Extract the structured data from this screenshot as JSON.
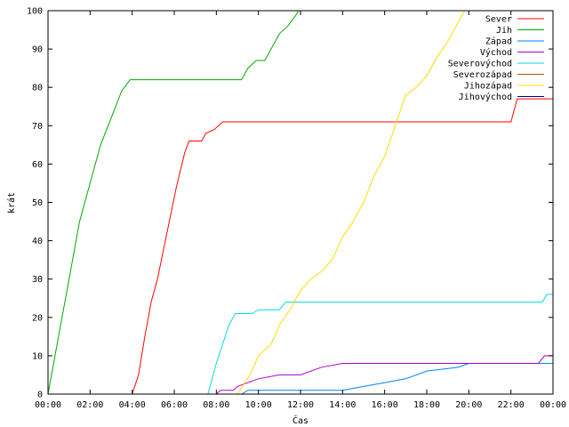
{
  "chart_data": {
    "type": "line",
    "title": "",
    "xlabel": "Čas",
    "ylabel": "krát",
    "xlim": [
      0,
      24
    ],
    "ylim": [
      0,
      100
    ],
    "x_ticks": [
      {
        "value": 0,
        "label": "00:00"
      },
      {
        "value": 2,
        "label": "02:00"
      },
      {
        "value": 4,
        "label": "04:00"
      },
      {
        "value": 6,
        "label": "06:00"
      },
      {
        "value": 8,
        "label": "08:00"
      },
      {
        "value": 10,
        "label": "10:00"
      },
      {
        "value": 12,
        "label": "12:00"
      },
      {
        "value": 14,
        "label": "14:00"
      },
      {
        "value": 16,
        "label": "16:00"
      },
      {
        "value": 18,
        "label": "18:00"
      },
      {
        "value": 20,
        "label": "20:00"
      },
      {
        "value": 22,
        "label": "22:00"
      },
      {
        "value": 24,
        "label": "00:00"
      }
    ],
    "y_ticks": [
      {
        "value": 0,
        "label": "0"
      },
      {
        "value": 10,
        "label": "10"
      },
      {
        "value": 20,
        "label": "20"
      },
      {
        "value": 30,
        "label": "30"
      },
      {
        "value": 40,
        "label": "40"
      },
      {
        "value": 50,
        "label": "50"
      },
      {
        "value": 60,
        "label": "60"
      },
      {
        "value": 70,
        "label": "70"
      },
      {
        "value": 80,
        "label": "80"
      },
      {
        "value": 90,
        "label": "90"
      },
      {
        "value": 100,
        "label": "100"
      }
    ],
    "grid": false,
    "legend_position": "top-right",
    "series": [
      {
        "name": "Sever",
        "color": "#ff0000",
        "points": [
          [
            0,
            0
          ],
          [
            4.0,
            0
          ],
          [
            4.3,
            5
          ],
          [
            4.6,
            15
          ],
          [
            4.9,
            24
          ],
          [
            5.2,
            30
          ],
          [
            5.5,
            38
          ],
          [
            5.8,
            46
          ],
          [
            6.1,
            54
          ],
          [
            6.5,
            63
          ],
          [
            6.7,
            66
          ],
          [
            7.3,
            66
          ],
          [
            7.5,
            68
          ],
          [
            7.9,
            69
          ],
          [
            8.3,
            71
          ],
          [
            9.0,
            71
          ],
          [
            22.0,
            71
          ],
          [
            22.3,
            77
          ],
          [
            24,
            77
          ]
        ]
      },
      {
        "name": "Jih",
        "color": "#00aa00",
        "points": [
          [
            0,
            0
          ],
          [
            0.5,
            15
          ],
          [
            1.0,
            30
          ],
          [
            1.5,
            45
          ],
          [
            2.0,
            55
          ],
          [
            2.5,
            65
          ],
          [
            3.0,
            72
          ],
          [
            3.5,
            79
          ],
          [
            3.9,
            82
          ],
          [
            4.2,
            82
          ],
          [
            9.2,
            82
          ],
          [
            9.5,
            85
          ],
          [
            9.9,
            87
          ],
          [
            10.3,
            87
          ],
          [
            10.6,
            90
          ],
          [
            11.0,
            94
          ],
          [
            11.4,
            96
          ],
          [
            11.8,
            99
          ],
          [
            11.9,
            100
          ]
        ]
      },
      {
        "name": "Západ",
        "color": "#0080ff",
        "points": [
          [
            0,
            0
          ],
          [
            9.2,
            0
          ],
          [
            9.5,
            1
          ],
          [
            14.0,
            1
          ],
          [
            15.0,
            2
          ],
          [
            16.0,
            3
          ],
          [
            17.0,
            4
          ],
          [
            18.0,
            6
          ],
          [
            19.5,
            7
          ],
          [
            20.0,
            8
          ],
          [
            23.4,
            8
          ],
          [
            24,
            8
          ]
        ]
      },
      {
        "name": "Východ",
        "color": "#aa00cc",
        "points": [
          [
            0,
            0
          ],
          [
            8.0,
            0
          ],
          [
            8.2,
            1
          ],
          [
            8.8,
            1
          ],
          [
            9.0,
            2
          ],
          [
            10.0,
            4
          ],
          [
            11.0,
            5
          ],
          [
            12.0,
            5
          ],
          [
            13.0,
            7
          ],
          [
            14.0,
            8
          ],
          [
            20.0,
            8
          ],
          [
            23.3,
            8
          ],
          [
            23.6,
            10
          ],
          [
            24,
            10
          ]
        ]
      },
      {
        "name": "Severovýchod",
        "color": "#00dddd",
        "points": [
          [
            0,
            0
          ],
          [
            7.6,
            0
          ],
          [
            8.0,
            8
          ],
          [
            8.3,
            13
          ],
          [
            8.6,
            18
          ],
          [
            8.9,
            21
          ],
          [
            9.7,
            21
          ],
          [
            10.0,
            22
          ],
          [
            11.0,
            22
          ],
          [
            11.3,
            24
          ],
          [
            12.0,
            24
          ],
          [
            20.0,
            24
          ],
          [
            23.5,
            24
          ],
          [
            23.7,
            26
          ],
          [
            24,
            26
          ]
        ]
      },
      {
        "name": "Severozápad",
        "color": "#b35900",
        "points": [
          [
            0,
            0
          ],
          [
            24,
            0
          ]
        ]
      },
      {
        "name": "Jihozápad",
        "color": "#ffdd00",
        "points": [
          [
            0,
            0
          ],
          [
            9.0,
            0
          ],
          [
            9.6,
            5
          ],
          [
            10.0,
            10
          ],
          [
            10.6,
            13
          ],
          [
            11.0,
            18
          ],
          [
            11.5,
            22
          ],
          [
            12.0,
            27
          ],
          [
            12.5,
            30
          ],
          [
            13.0,
            32
          ],
          [
            13.5,
            35
          ],
          [
            14.0,
            41
          ],
          [
            14.5,
            45
          ],
          [
            15.0,
            50
          ],
          [
            15.5,
            57
          ],
          [
            16.0,
            62
          ],
          [
            16.5,
            70
          ],
          [
            17.0,
            78
          ],
          [
            17.5,
            80
          ],
          [
            18.0,
            83
          ],
          [
            18.5,
            88
          ],
          [
            19.0,
            92
          ],
          [
            19.5,
            97
          ],
          [
            19.8,
            100
          ]
        ]
      },
      {
        "name": "Jihovýchod",
        "color": "#000080",
        "points": [
          [
            0,
            0
          ],
          [
            24,
            0
          ]
        ]
      }
    ]
  }
}
